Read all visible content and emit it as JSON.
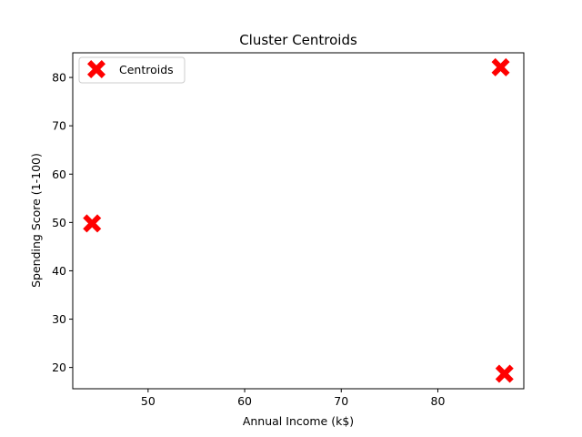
{
  "chart_data": {
    "type": "scatter",
    "title": "Cluster Centroids",
    "xlabel": "Annual Income (k$)",
    "ylabel": "Spending Score (1-100)",
    "xlim": [
      42.2,
      88.9
    ],
    "ylim": [
      15.6,
      85.1
    ],
    "xticks": [
      50,
      60,
      70,
      80
    ],
    "yticks": [
      20,
      30,
      40,
      50,
      60,
      70,
      80
    ],
    "grid": false,
    "legend_position": "upper-left",
    "series": [
      {
        "name": "Centroids",
        "marker": "X",
        "color": "#ff0000",
        "points": [
          {
            "x": 86.5,
            "y": 82.1
          },
          {
            "x": 44.2,
            "y": 49.8
          },
          {
            "x": 86.9,
            "y": 18.7
          }
        ]
      }
    ]
  }
}
